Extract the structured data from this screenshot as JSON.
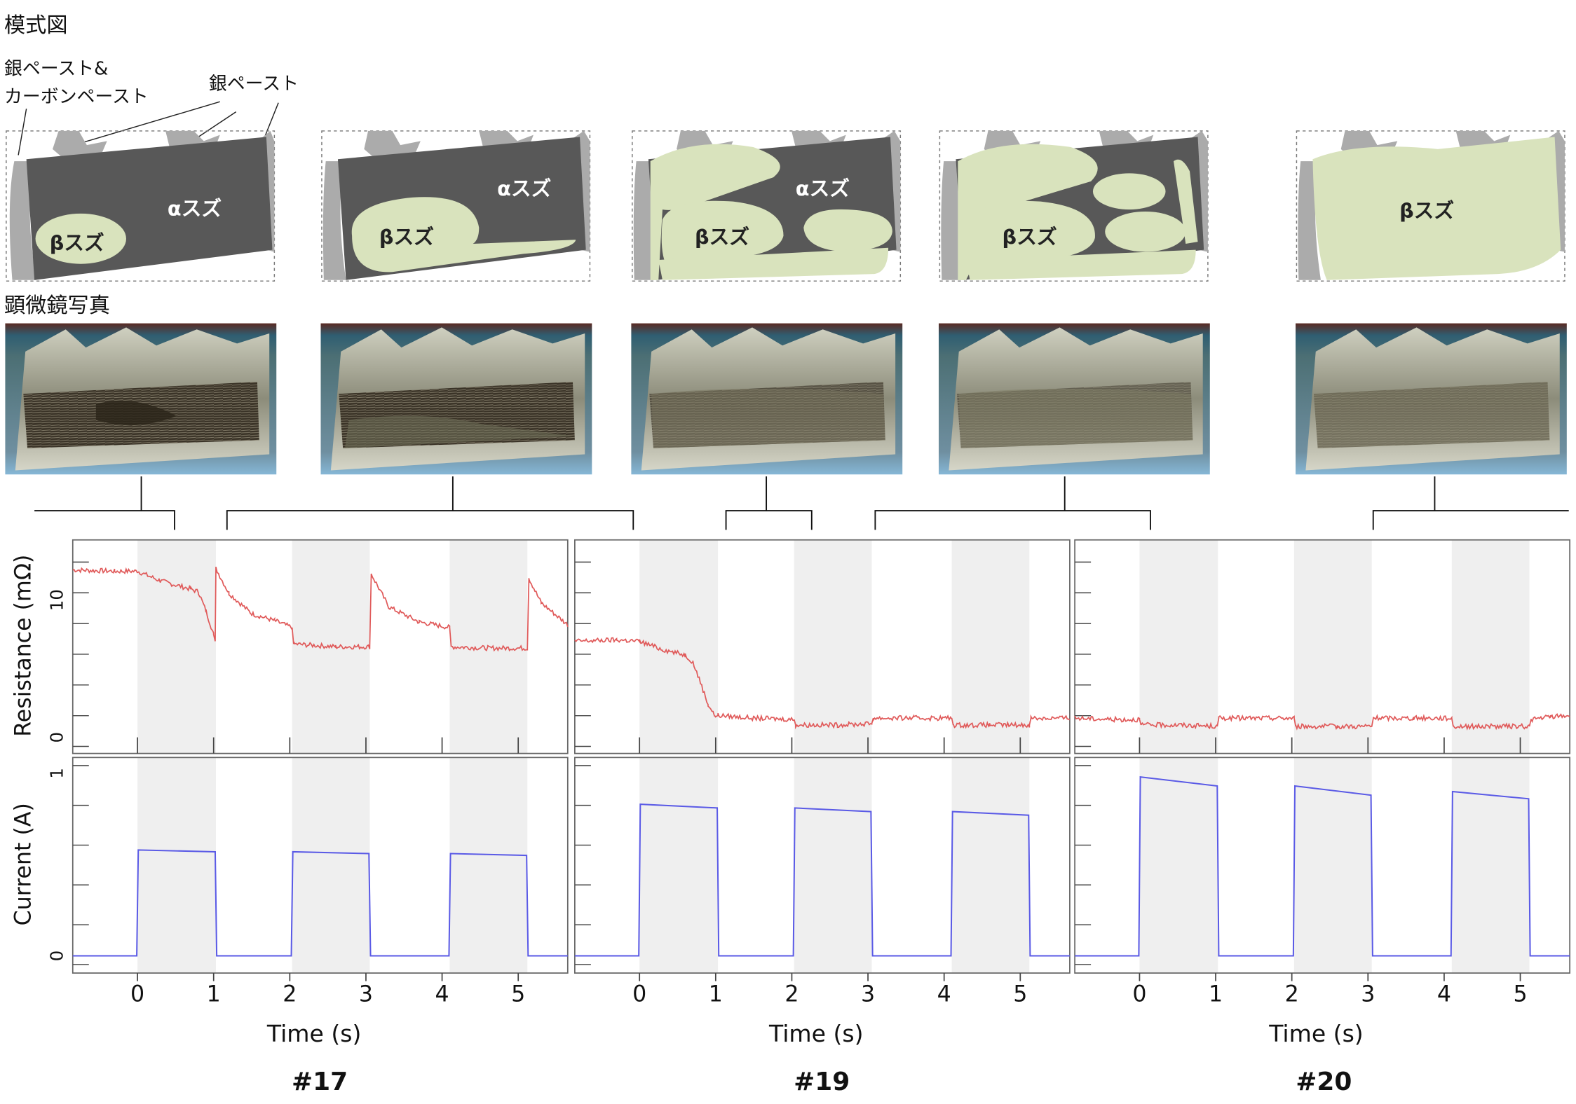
{
  "section_labels": {
    "schematic": "模式図",
    "photo": "顕微鏡写真"
  },
  "schematic_annotations": {
    "paste_both_line1": "銀ペースト&",
    "paste_both_line2": "カーボンペースト",
    "paste_silver": "銀ペースト"
  },
  "panels": [
    {
      "alpha": "αスズ",
      "beta": "βスズ"
    },
    {
      "alpha": "αスズ",
      "beta": "βスズ"
    },
    {
      "alpha": "αスズ",
      "beta": "βスズ"
    },
    {
      "alpha": "",
      "beta": "βスズ"
    },
    {
      "alpha": "",
      "beta": "βスズ"
    }
  ],
  "colors": {
    "alpha_tin": "#585858",
    "beta_tin": "#d9e3bd",
    "paste": "#ababab",
    "resistance_line": "#e05a5a",
    "current_line": "#5a5ae6",
    "shade": "#efefef",
    "frame": "#666666"
  },
  "chart_data": [
    {
      "type": "line",
      "sample": "#17",
      "xlabel": "Time (s)",
      "ylabel_top": "Resistance (mΩ)",
      "ylabel_bottom": "Current (A)",
      "x_ticks": [
        "0",
        "1",
        "2",
        "3",
        "4",
        "5"
      ],
      "xlim": [
        -0.85,
        5.65
      ],
      "resistance_ticks": [
        "10",
        "0"
      ],
      "resistance_ylim": [
        0,
        13.5
      ],
      "current_ticks": [
        "1",
        "0"
      ],
      "current_ylim": [
        -0.05,
        1.02
      ],
      "on_intervals": [
        [
          0,
          1.03
        ],
        [
          2.03,
          3.05
        ],
        [
          4.1,
          5.12
        ]
      ],
      "series": [
        {
          "name": "Resistance",
          "points": [
            [
              -0.85,
              12.2
            ],
            [
              -0.3,
              12.1
            ],
            [
              0,
              12.1
            ],
            [
              0.3,
              11.4
            ],
            [
              0.7,
              10.8
            ],
            [
              0.8,
              10.6
            ],
            [
              0.9,
              9.2
            ],
            [
              1.0,
              7.5
            ],
            [
              1.02,
              7.0
            ],
            [
              1.03,
              12.3
            ],
            [
              1.2,
              10.5
            ],
            [
              1.5,
              9.0
            ],
            [
              1.8,
              8.5
            ],
            [
              2.03,
              8.0
            ],
            [
              2.05,
              6.8
            ],
            [
              2.6,
              6.6
            ],
            [
              3.05,
              6.6
            ],
            [
              3.07,
              11.9
            ],
            [
              3.3,
              9.5
            ],
            [
              3.7,
              8.4
            ],
            [
              4.1,
              8.0
            ],
            [
              4.12,
              6.6
            ],
            [
              4.6,
              6.5
            ],
            [
              5.12,
              6.5
            ],
            [
              5.14,
              11.6
            ],
            [
              5.3,
              9.8
            ],
            [
              5.65,
              8.2
            ]
          ]
        },
        {
          "name": "Current",
          "points": [
            [
              -0.85,
              0.0
            ],
            [
              -0.01,
              0.0
            ],
            [
              0.01,
              0.58
            ],
            [
              1.02,
              0.57
            ],
            [
              1.04,
              0.0
            ],
            [
              2.02,
              0.0
            ],
            [
              2.04,
              0.57
            ],
            [
              3.04,
              0.56
            ],
            [
              3.06,
              0.0
            ],
            [
              4.09,
              0.0
            ],
            [
              4.11,
              0.56
            ],
            [
              5.11,
              0.55
            ],
            [
              5.13,
              0.0
            ],
            [
              5.65,
              0.0
            ]
          ]
        }
      ]
    },
    {
      "type": "line",
      "sample": "#19",
      "xlabel": "Time (s)",
      "ylabel_top": "",
      "ylabel_bottom": "",
      "x_ticks": [
        "0",
        "1",
        "2",
        "3",
        "4",
        "5"
      ],
      "xlim": [
        -0.85,
        5.65
      ],
      "resistance_ylim": [
        0,
        13.5
      ],
      "current_ylim": [
        -0.05,
        1.02
      ],
      "on_intervals": [
        [
          0,
          1.03
        ],
        [
          2.03,
          3.05
        ],
        [
          4.1,
          5.12
        ]
      ],
      "series": [
        {
          "name": "Resistance",
          "points": [
            [
              -0.85,
              7.0
            ],
            [
              -0.3,
              7.1
            ],
            [
              0,
              7.0
            ],
            [
              0.3,
              6.4
            ],
            [
              0.6,
              6.0
            ],
            [
              0.7,
              5.5
            ],
            [
              0.8,
              4.0
            ],
            [
              0.9,
              2.4
            ],
            [
              1.0,
              1.5
            ],
            [
              1.03,
              1.6
            ],
            [
              1.5,
              1.4
            ],
            [
              2.03,
              1.3
            ],
            [
              2.05,
              0.9
            ],
            [
              2.6,
              0.9
            ],
            [
              3.05,
              1.0
            ],
            [
              3.07,
              1.4
            ],
            [
              3.6,
              1.4
            ],
            [
              4.1,
              1.4
            ],
            [
              4.12,
              0.9
            ],
            [
              4.6,
              0.9
            ],
            [
              5.12,
              0.9
            ],
            [
              5.14,
              1.4
            ],
            [
              5.65,
              1.4
            ]
          ]
        },
        {
          "name": "Current",
          "points": [
            [
              -0.85,
              0.0
            ],
            [
              -0.01,
              0.0
            ],
            [
              0.01,
              0.83
            ],
            [
              1.02,
              0.81
            ],
            [
              1.04,
              0.0
            ],
            [
              2.02,
              0.0
            ],
            [
              2.04,
              0.81
            ],
            [
              3.04,
              0.79
            ],
            [
              3.06,
              0.0
            ],
            [
              4.09,
              0.0
            ],
            [
              4.11,
              0.79
            ],
            [
              5.11,
              0.77
            ],
            [
              5.13,
              0.0
            ],
            [
              5.65,
              0.0
            ]
          ]
        }
      ]
    },
    {
      "type": "line",
      "sample": "#20",
      "xlabel": "Time (s)",
      "ylabel_top": "",
      "ylabel_bottom": "",
      "x_ticks": [
        "0",
        "1",
        "2",
        "3",
        "4",
        "5"
      ],
      "xlim": [
        -0.85,
        5.65
      ],
      "resistance_ylim": [
        0,
        13.5
      ],
      "current_ylim": [
        -0.05,
        1.02
      ],
      "on_intervals": [
        [
          0,
          1.03
        ],
        [
          2.03,
          3.05
        ],
        [
          4.1,
          5.12
        ]
      ],
      "series": [
        {
          "name": "Resistance",
          "points": [
            [
              -0.85,
              1.4
            ],
            [
              -0.3,
              1.3
            ],
            [
              0,
              1.3
            ],
            [
              0.02,
              0.9
            ],
            [
              0.5,
              0.9
            ],
            [
              1.02,
              0.8
            ],
            [
              1.04,
              1.4
            ],
            [
              1.5,
              1.4
            ],
            [
              2.03,
              1.4
            ],
            [
              2.05,
              0.8
            ],
            [
              2.6,
              0.8
            ],
            [
              3.05,
              0.8
            ],
            [
              3.07,
              1.4
            ],
            [
              3.6,
              1.4
            ],
            [
              4.1,
              1.4
            ],
            [
              4.12,
              0.8
            ],
            [
              4.6,
              0.8
            ],
            [
              5.12,
              0.8
            ],
            [
              5.14,
              1.3
            ],
            [
              5.4,
              1.5
            ],
            [
              5.65,
              1.6
            ]
          ]
        },
        {
          "name": "Current",
          "points": [
            [
              -0.85,
              0.0
            ],
            [
              -0.01,
              0.0
            ],
            [
              0.01,
              0.98
            ],
            [
              1.02,
              0.93
            ],
            [
              1.04,
              0.0
            ],
            [
              2.02,
              0.0
            ],
            [
              2.04,
              0.93
            ],
            [
              3.04,
              0.88
            ],
            [
              3.06,
              0.0
            ],
            [
              4.09,
              0.0
            ],
            [
              4.11,
              0.9
            ],
            [
              5.11,
              0.86
            ],
            [
              5.13,
              0.0
            ],
            [
              5.65,
              0.0
            ]
          ]
        }
      ]
    }
  ]
}
